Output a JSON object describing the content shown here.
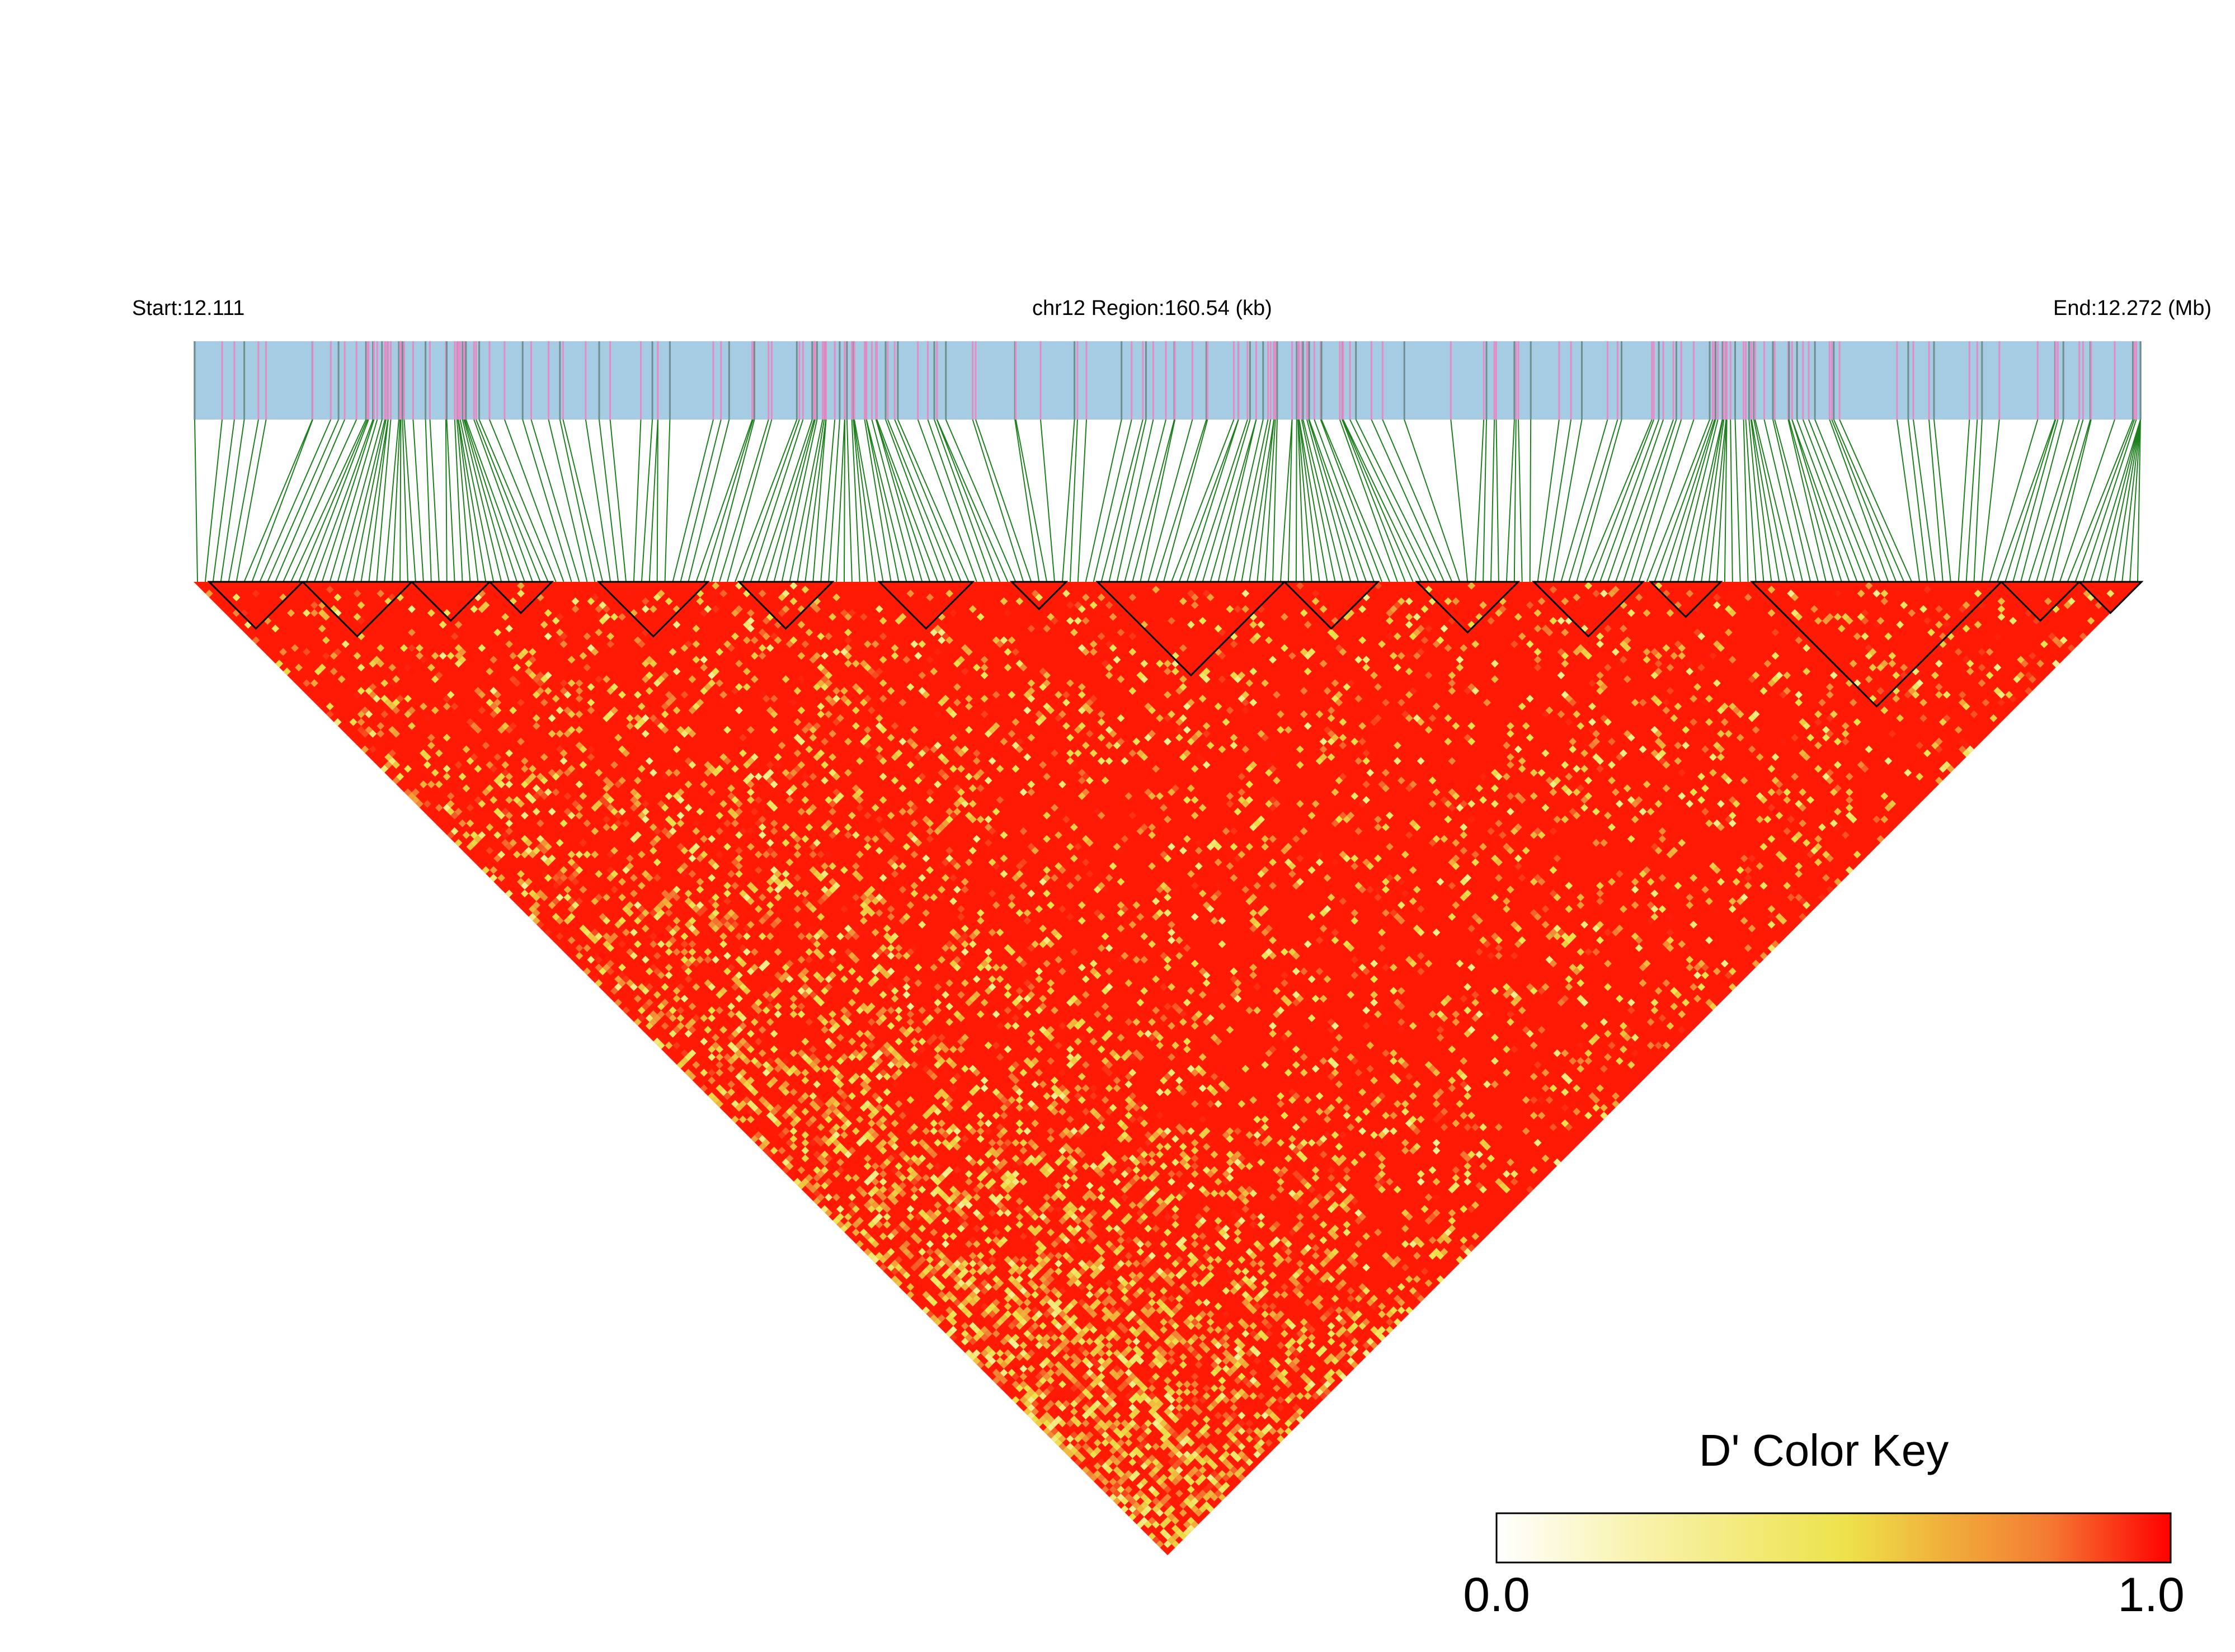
{
  "header": {
    "start_label": "Start:12.111",
    "region_label": "chr12 Region:160.54 (kb)",
    "end_label": "End:12.272 (Mb)"
  },
  "colors": {
    "track_background": "#A6CCE3",
    "track_tick_pink": "#E38CC5",
    "track_tick_gray": "#6F8E8E",
    "connector_line": "#1E7F1E",
    "block_outline": "#000000",
    "ld_low": "#FFFFFF",
    "ld_mid": "#EDE24A",
    "ld_high": "#FF0000"
  },
  "chart_data": {
    "type": "heatmap",
    "subtype": "triangular linkage-disequilibrium (D') heatmap",
    "chromosome": "chr12",
    "region_start_mb": 12.111,
    "region_end_mb": 12.272,
    "region_length_kb": 160.54,
    "snp_count_approx": 250,
    "value_range": [
      0.0,
      1.0
    ],
    "dominant_value": "high D' (near 1.0) across most of the region",
    "ld_blocks_shown": 16,
    "color_key": {
      "title": "D' Color Key",
      "min_label": "0.0",
      "max_label": "1.0",
      "min": 0.0,
      "max": 1.0,
      "gradient": [
        "#FFFFFF",
        "#F9F3B0",
        "#EDE24A",
        "#F0B43C",
        "#F47A32",
        "#FF0000"
      ]
    }
  }
}
